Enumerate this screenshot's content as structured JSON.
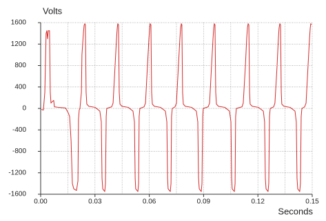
{
  "chart_data": {
    "type": "line",
    "ylabel": "Volts",
    "xlabel": "Seconds",
    "xlim": [
      0,
      0.15
    ],
    "ylim": [
      -1600,
      1600
    ],
    "xticks": [
      {
        "value": 0,
        "label": "0.00"
      },
      {
        "value": 0.03,
        "label": "0.03"
      },
      {
        "value": 0.06,
        "label": "0.06"
      },
      {
        "value": 0.09,
        "label": "0.09"
      },
      {
        "value": 0.12,
        "label": "0.12"
      },
      {
        "value": 0.15,
        "label": "0.15"
      }
    ],
    "xminor": [
      0.015,
      0.045,
      0.075,
      0.105,
      0.135
    ],
    "yticks": [
      1600,
      1200,
      800,
      400,
      0,
      -400,
      -800,
      -1200,
      -1600
    ],
    "grid": true,
    "x": [
      0.0004,
      0.0015,
      0.0023,
      0.003,
      0.0034,
      0.0038,
      0.0042,
      0.0049,
      0.0053,
      0.0057,
      0.0065,
      0.0072,
      0.0076,
      0.0099,
      0.0137,
      0.0152,
      0.016,
      0.0168,
      0.0175,
      0.0183,
      0.0198,
      0.0206,
      0.0209,
      0.0213,
      0.0217,
      0.0225,
      0.0228,
      0.0236,
      0.024,
      0.0244,
      0.0247,
      0.0251,
      0.0255,
      0.0266,
      0.0301,
      0.0327,
      0.0335,
      0.0339,
      0.0343,
      0.0354,
      0.0358,
      0.0362,
      0.0365,
      0.0392,
      0.04,
      0.0411,
      0.0419,
      0.0423,
      0.0426,
      0.043,
      0.0434,
      0.0438,
      0.0449,
      0.0484,
      0.051,
      0.0518,
      0.0522,
      0.0525,
      0.0537,
      0.0541,
      0.0544,
      0.0548,
      0.0571,
      0.0579,
      0.059,
      0.0598,
      0.0602,
      0.0605,
      0.0609,
      0.0613,
      0.0617,
      0.0628,
      0.0662,
      0.0689,
      0.0697,
      0.0701,
      0.0704,
      0.0716,
      0.072,
      0.0723,
      0.0727,
      0.0742,
      0.075,
      0.0761,
      0.0769,
      0.0773,
      0.0777,
      0.078,
      0.0784,
      0.0788,
      0.0799,
      0.0834,
      0.086,
      0.0868,
      0.0872,
      0.0876,
      0.0887,
      0.0891,
      0.0895,
      0.0898,
      0.0925,
      0.0933,
      0.0944,
      0.0952,
      0.0956,
      0.0959,
      0.0963,
      0.0967,
      0.0971,
      0.0982,
      0.1017,
      0.1043,
      0.1051,
      0.1055,
      0.1058,
      0.107,
      0.1074,
      0.1077,
      0.1081,
      0.1112,
      0.1119,
      0.1131,
      0.1138,
      0.1142,
      0.1146,
      0.115,
      0.1154,
      0.1157,
      0.1169,
      0.1203,
      0.123,
      0.1237,
      0.1241,
      0.1245,
      0.1256,
      0.126,
      0.1264,
      0.1268,
      0.1287,
      0.1294,
      0.1306,
      0.1313,
      0.1317,
      0.1321,
      0.1325,
      0.1329,
      0.1332,
      0.1344,
      0.1378,
      0.1405,
      0.1412,
      0.1416,
      0.142,
      0.1431,
      0.1435,
      0.1439,
      0.1443,
      0.1458,
      0.1466,
      0.1477,
      0.1485,
      0.1489,
      0.1492,
      0.1496
    ],
    "series": [
      {
        "color": "#d42a2a",
        "values": [
          -20,
          -30,
          300,
          1400,
          1450,
          1300,
          1450,
          1450,
          300,
          100,
          130,
          150,
          30,
          20,
          10,
          -80,
          -150,
          -600,
          -1400,
          -1500,
          -1530,
          -1350,
          -200,
          -30,
          0,
          300,
          1000,
          1400,
          1550,
          1580,
          1560,
          300,
          80,
          40,
          20,
          -50,
          -250,
          -1300,
          -1500,
          -1550,
          -1400,
          -150,
          0,
          30,
          100,
          800,
          1300,
          1500,
          1580,
          1560,
          300,
          80,
          40,
          20,
          -50,
          -250,
          -1300,
          -1500,
          -1550,
          -1400,
          -150,
          0,
          30,
          100,
          800,
          1300,
          1500,
          1580,
          1560,
          300,
          80,
          40,
          20,
          -50,
          -250,
          -1300,
          -1500,
          -1550,
          -1400,
          -150,
          0,
          30,
          100,
          800,
          1300,
          1500,
          1580,
          1560,
          300,
          80,
          40,
          20,
          -50,
          -250,
          -1300,
          -1500,
          -1550,
          -1400,
          -150,
          0,
          30,
          100,
          800,
          1300,
          1500,
          1580,
          1560,
          300,
          80,
          40,
          20,
          -50,
          -250,
          -1300,
          -1500,
          -1550,
          -1400,
          -150,
          0,
          30,
          100,
          800,
          1300,
          1500,
          1580,
          1560,
          300,
          80,
          40,
          20,
          -50,
          -250,
          -1300,
          -1500,
          -1550,
          -1400,
          -150,
          0,
          30,
          100,
          800,
          1300,
          1500,
          1580,
          1560,
          300,
          80,
          40,
          20,
          -50,
          -250,
          -1300,
          -1500,
          -1550,
          -1400,
          -150,
          0,
          30,
          100,
          800,
          1300,
          1500,
          1580,
          1560
        ]
      }
    ]
  }
}
